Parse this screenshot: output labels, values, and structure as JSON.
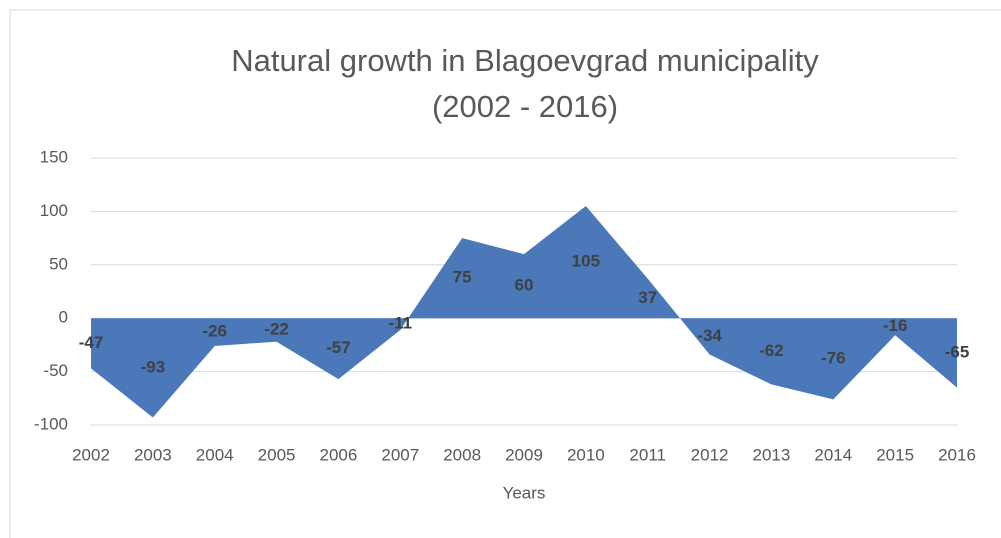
{
  "chart_data": {
    "type": "area",
    "title": "Natural growth in Blagoevgrad municipality (2002 - 2016)",
    "x_label": "Years",
    "categories": [
      "2002",
      "2003",
      "2004",
      "2005",
      "2006",
      "2007",
      "2008",
      "2009",
      "2010",
      "2011",
      "2012",
      "2013",
      "2014",
      "2015",
      "2016"
    ],
    "series": [
      {
        "name": "Natural growth",
        "color": "#4a78b8",
        "values": [
          -47,
          -93,
          -26,
          -22,
          -57,
          -11,
          75,
          60,
          105,
          37,
          -34,
          -62,
          -76,
          -16,
          -65
        ]
      }
    ],
    "ylim": [
      -100,
      150
    ],
    "yticks": [
      150,
      100,
      50,
      0,
      -50,
      -100
    ],
    "grid": true
  }
}
